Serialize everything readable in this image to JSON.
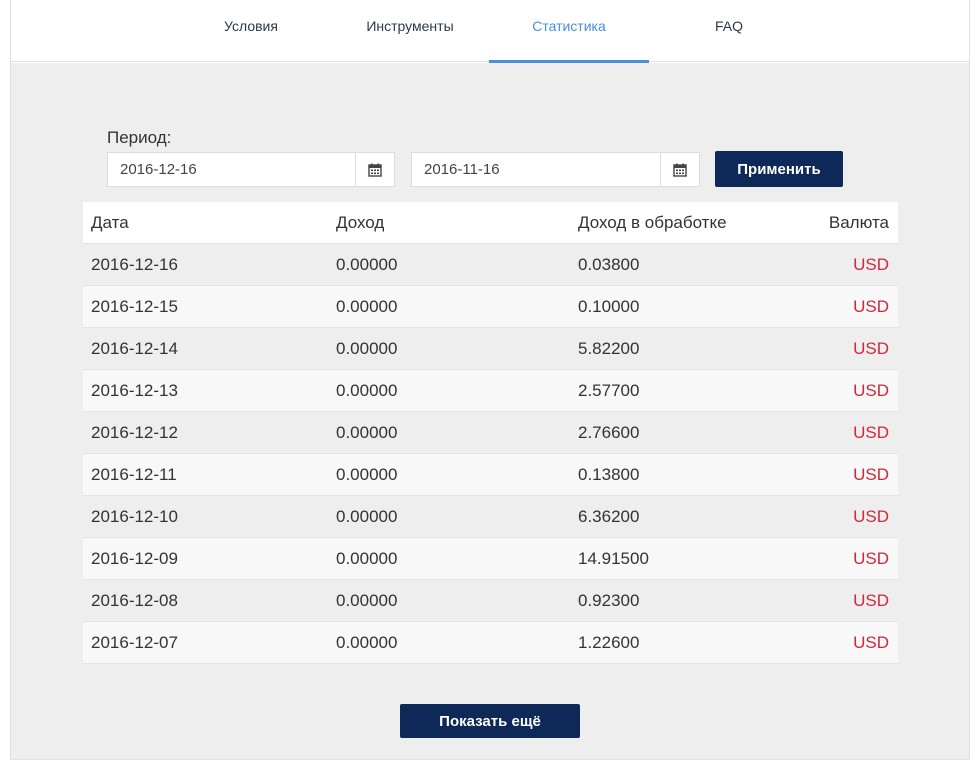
{
  "tabs": [
    {
      "label": "Условия",
      "active": false
    },
    {
      "label": "Инструменты",
      "active": false
    },
    {
      "label": "Статистика",
      "active": true
    },
    {
      "label": "FAQ",
      "active": false
    }
  ],
  "filter": {
    "period_label": "Период:",
    "date_from": "2016-12-16",
    "date_to": "2016-11-16",
    "calendar_icon": "calendar-icon",
    "apply_label": "Применить"
  },
  "table": {
    "headers": {
      "date": "Дата",
      "income": "Доход",
      "processing": "Доход в обработке",
      "currency": "Валюта"
    },
    "rows": [
      {
        "date": "2016-12-16",
        "income": "0.00000",
        "processing": "0.03800",
        "currency": "USD"
      },
      {
        "date": "2016-12-15",
        "income": "0.00000",
        "processing": "0.10000",
        "currency": "USD"
      },
      {
        "date": "2016-12-14",
        "income": "0.00000",
        "processing": "5.82200",
        "currency": "USD"
      },
      {
        "date": "2016-12-13",
        "income": "0.00000",
        "processing": "2.57700",
        "currency": "USD"
      },
      {
        "date": "2016-12-12",
        "income": "0.00000",
        "processing": "2.76600",
        "currency": "USD"
      },
      {
        "date": "2016-12-11",
        "income": "0.00000",
        "processing": "0.13800",
        "currency": "USD"
      },
      {
        "date": "2016-12-10",
        "income": "0.00000",
        "processing": "6.36200",
        "currency": "USD"
      },
      {
        "date": "2016-12-09",
        "income": "0.00000",
        "processing": "14.91500",
        "currency": "USD"
      },
      {
        "date": "2016-12-08",
        "income": "0.00000",
        "processing": "0.92300",
        "currency": "USD"
      },
      {
        "date": "2016-12-07",
        "income": "0.00000",
        "processing": "1.22600",
        "currency": "USD"
      }
    ]
  },
  "show_more_label": "Показать ещё",
  "colors": {
    "accent": "#4a8fd8",
    "button": "#0e2857",
    "currency": "#d0293b",
    "background": "#eeeeee"
  }
}
